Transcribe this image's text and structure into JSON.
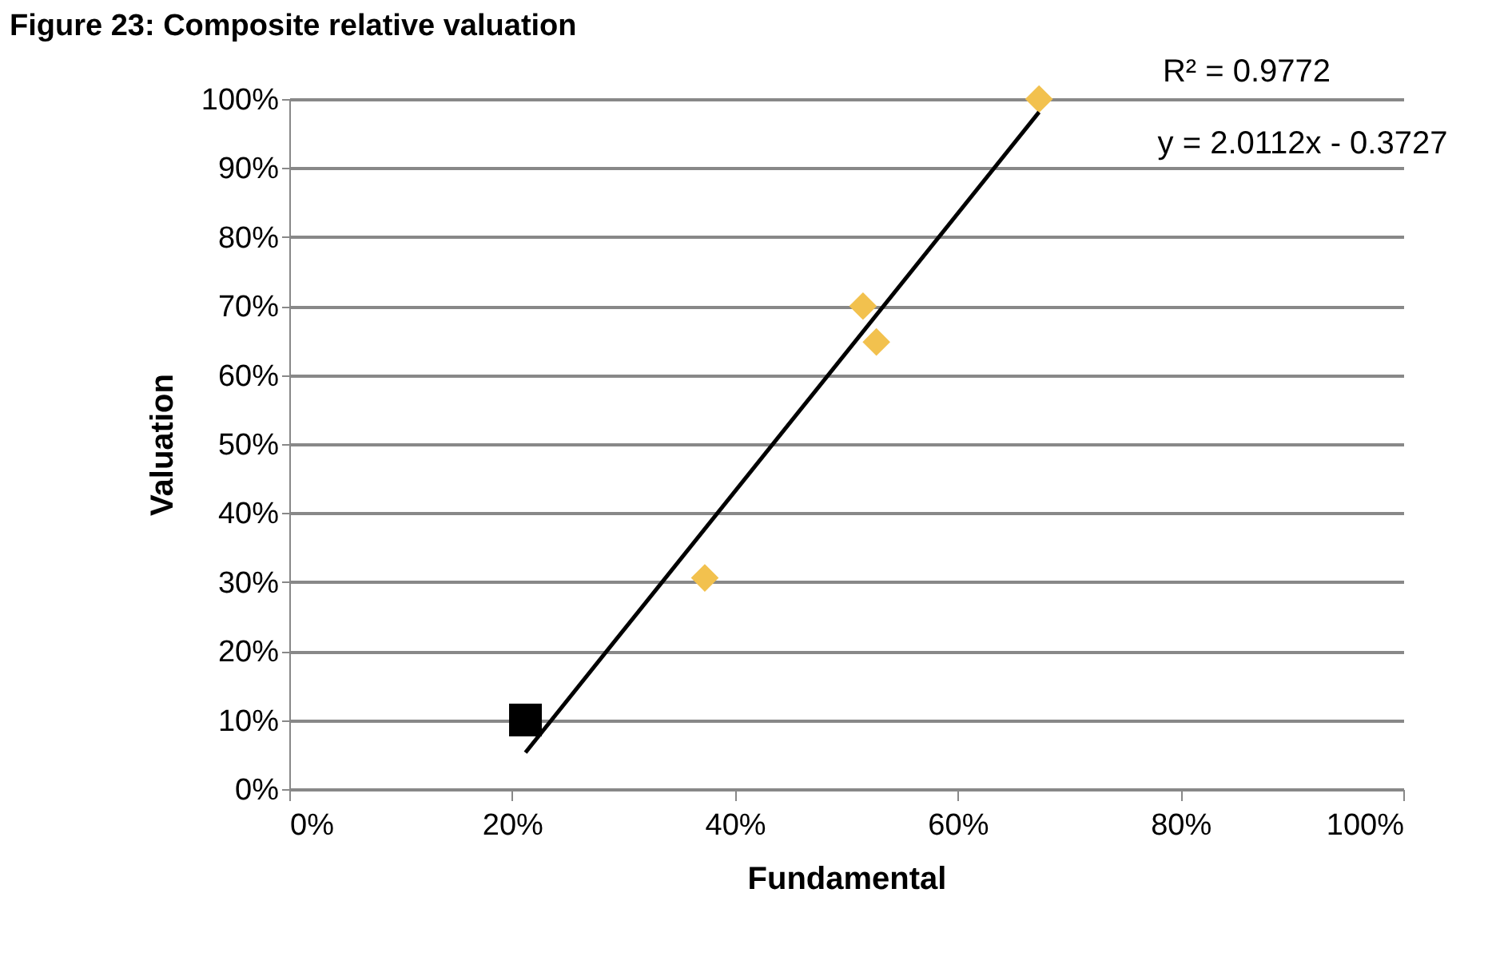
{
  "chart_data": {
    "type": "scatter",
    "title": "Figure 23: Composite relative valuation",
    "xlabel": "Fundamental",
    "ylabel": "Valuation",
    "annotations": [
      "R² = 0.9772",
      "y = 2.0112x - 0.3727"
    ],
    "series": [
      {
        "marker": "diamond",
        "color": "#f2c14e",
        "x": [
          67.3,
          51.5,
          52.7,
          37.3
        ],
        "values": [
          100,
          70,
          64.8,
          30.6
        ]
      },
      {
        "marker": "square",
        "color": "#000000",
        "x": [
          21.2
        ],
        "values": [
          10
        ]
      },
      {
        "type": "line",
        "color": "#000000",
        "x": [
          21.2,
          67.3
        ],
        "values": [
          5.3,
          98.1
        ]
      }
    ],
    "xlim": [
      0,
      100
    ],
    "ylim": [
      0,
      100
    ],
    "xticks": [
      {
        "value": 0,
        "label": "0%"
      },
      {
        "value": 20,
        "label": "20%"
      },
      {
        "value": 40,
        "label": "40%"
      },
      {
        "value": 60,
        "label": "60%"
      },
      {
        "value": 80,
        "label": "80%"
      },
      {
        "value": 100,
        "label": "100%"
      }
    ],
    "yticks": [
      {
        "value": 0,
        "label": "0%"
      },
      {
        "value": 10,
        "label": "10%"
      },
      {
        "value": 20,
        "label": "20%"
      },
      {
        "value": 30,
        "label": "30%"
      },
      {
        "value": 40,
        "label": "40%"
      },
      {
        "value": 50,
        "label": "50%"
      },
      {
        "value": 60,
        "label": "60%"
      },
      {
        "value": 70,
        "label": "70%"
      },
      {
        "value": 80,
        "label": "80%"
      },
      {
        "value": 90,
        "label": "90%"
      },
      {
        "value": 100,
        "label": "100%"
      }
    ],
    "grid": "y"
  }
}
